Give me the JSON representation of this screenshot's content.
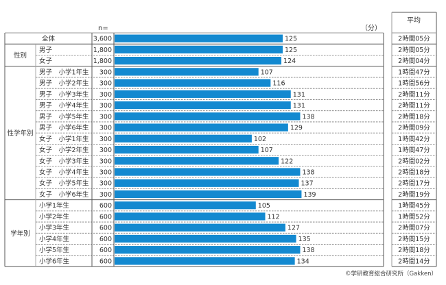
{
  "chart_data": {
    "type": "bar",
    "orientation": "horizontal",
    "unit_label": "（分）",
    "n_label": "n=",
    "avg_header": "平均",
    "xlim": [
      0,
      140
    ],
    "bar_color": "#1389d0",
    "groups": [
      {
        "name": "",
        "rows": [
          {
            "label": "全体",
            "n": "3,600",
            "value": 125,
            "avg": "2時間05分"
          }
        ]
      },
      {
        "name": "性別",
        "rows": [
          {
            "label": "男子",
            "n": "1,800",
            "value": 125,
            "avg": "2時間05分"
          },
          {
            "label": "女子",
            "n": "1,800",
            "value": 124,
            "avg": "2時間04分"
          }
        ]
      },
      {
        "name": "性学年別",
        "rows": [
          {
            "label": "男子　小学1年生",
            "n": "300",
            "value": 107,
            "avg": "1時間47分"
          },
          {
            "label": "男子　小学2年生",
            "n": "300",
            "value": 116,
            "avg": "1時間56分"
          },
          {
            "label": "男子　小学3年生",
            "n": "300",
            "value": 131,
            "avg": "2時間11分"
          },
          {
            "label": "男子　小学4年生",
            "n": "300",
            "value": 131,
            "avg": "2時間11分"
          },
          {
            "label": "男子　小学5年生",
            "n": "300",
            "value": 138,
            "avg": "2時間18分"
          },
          {
            "label": "男子　小学6年生",
            "n": "300",
            "value": 129,
            "avg": "2時間09分"
          },
          {
            "label": "女子　小学1年生",
            "n": "300",
            "value": 102,
            "avg": "1時間42分"
          },
          {
            "label": "女子　小学2年生",
            "n": "300",
            "value": 107,
            "avg": "1時間47分"
          },
          {
            "label": "女子　小学3年生",
            "n": "300",
            "value": 122,
            "avg": "2時間02分"
          },
          {
            "label": "女子　小学4年生",
            "n": "300",
            "value": 138,
            "avg": "2時間18分"
          },
          {
            "label": "女子　小学5年生",
            "n": "300",
            "value": 137,
            "avg": "2時間17分"
          },
          {
            "label": "女子　小学6年生",
            "n": "300",
            "value": 139,
            "avg": "2時間19分"
          }
        ]
      },
      {
        "name": "学年別",
        "rows": [
          {
            "label": "小学1年生",
            "n": "600",
            "value": 105,
            "avg": "1時間45分"
          },
          {
            "label": "小学2年生",
            "n": "600",
            "value": 112,
            "avg": "1時間52分"
          },
          {
            "label": "小学3年生",
            "n": "600",
            "value": 127,
            "avg": "2時間07分"
          },
          {
            "label": "小学4年生",
            "n": "600",
            "value": 135,
            "avg": "2時間15分"
          },
          {
            "label": "小学5年生",
            "n": "600",
            "value": 138,
            "avg": "2時間18分"
          },
          {
            "label": "小学6年生",
            "n": "600",
            "value": 134,
            "avg": "2時間14分"
          }
        ]
      }
    ],
    "credit": "©学研教育総合研究所（Gakken）"
  }
}
